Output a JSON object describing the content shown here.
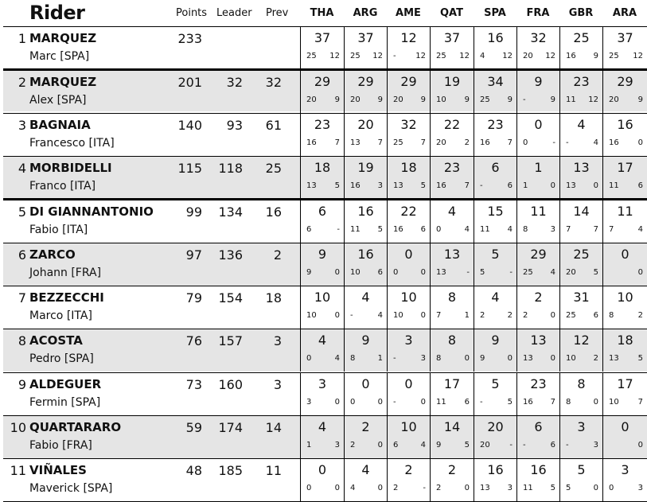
{
  "header": {
    "rider": "Rider",
    "points": "Points",
    "leader": "Leader",
    "prev": "Prev",
    "races": [
      "THA",
      "ARG",
      "AME",
      "QAT",
      "SPA",
      "FRA",
      "GBR",
      "ARA"
    ]
  },
  "riders": [
    {
      "rank": "1",
      "surname": "MARQUEZ",
      "first": "Marc [SPA]",
      "points": "233",
      "leader": "",
      "prev": "",
      "races": [
        [
          "37",
          "25",
          "12"
        ],
        [
          "37",
          "25",
          "12"
        ],
        [
          "12",
          "-",
          "12"
        ],
        [
          "37",
          "25",
          "12"
        ],
        [
          "16",
          "4",
          "12"
        ],
        [
          "32",
          "20",
          "12"
        ],
        [
          "25",
          "16",
          "9"
        ],
        [
          "37",
          "25",
          "12"
        ]
      ]
    },
    {
      "rank": "2",
      "surname": "MARQUEZ",
      "first": "Alex [SPA]",
      "points": "201",
      "leader": "32",
      "prev": "32",
      "races": [
        [
          "29",
          "20",
          "9"
        ],
        [
          "29",
          "20",
          "9"
        ],
        [
          "29",
          "20",
          "9"
        ],
        [
          "19",
          "10",
          "9"
        ],
        [
          "34",
          "25",
          "9"
        ],
        [
          "9",
          "-",
          "9"
        ],
        [
          "23",
          "11",
          "12"
        ],
        [
          "29",
          "20",
          "9"
        ]
      ]
    },
    {
      "rank": "3",
      "surname": "BAGNAIA",
      "first": "Francesco [ITA]",
      "points": "140",
      "leader": "93",
      "prev": "61",
      "races": [
        [
          "23",
          "16",
          "7"
        ],
        [
          "20",
          "13",
          "7"
        ],
        [
          "32",
          "25",
          "7"
        ],
        [
          "22",
          "20",
          "2"
        ],
        [
          "23",
          "16",
          "7"
        ],
        [
          "0",
          "0",
          "-"
        ],
        [
          "4",
          "-",
          "4"
        ],
        [
          "16",
          "16",
          "0"
        ]
      ]
    },
    {
      "rank": "4",
      "surname": "MORBIDELLI",
      "first": "Franco [ITA]",
      "points": "115",
      "leader": "118",
      "prev": "25",
      "races": [
        [
          "18",
          "13",
          "5"
        ],
        [
          "19",
          "16",
          "3"
        ],
        [
          "18",
          "13",
          "5"
        ],
        [
          "23",
          "16",
          "7"
        ],
        [
          "6",
          "-",
          "6"
        ],
        [
          "1",
          "1",
          "0"
        ],
        [
          "13",
          "13",
          "0"
        ],
        [
          "17",
          "11",
          "6"
        ]
      ]
    },
    {
      "rank": "5",
      "surname": "DI GIANNANTONIO",
      "first": "Fabio [ITA]",
      "points": "99",
      "leader": "134",
      "prev": "16",
      "races": [
        [
          "6",
          "6",
          "-"
        ],
        [
          "16",
          "11",
          "5"
        ],
        [
          "22",
          "16",
          "6"
        ],
        [
          "4",
          "0",
          "4"
        ],
        [
          "15",
          "11",
          "4"
        ],
        [
          "11",
          "8",
          "3"
        ],
        [
          "14",
          "7",
          "7"
        ],
        [
          "11",
          "7",
          "4"
        ]
      ]
    },
    {
      "rank": "6",
      "surname": "ZARCO",
      "first": "Johann [FRA]",
      "points": "97",
      "leader": "136",
      "prev": "2",
      "races": [
        [
          "9",
          "9",
          "0"
        ],
        [
          "16",
          "10",
          "6"
        ],
        [
          "0",
          "0",
          "0"
        ],
        [
          "13",
          "13",
          "-"
        ],
        [
          "5",
          "5",
          "-"
        ],
        [
          "29",
          "25",
          "4"
        ],
        [
          "25",
          "20",
          "5"
        ],
        [
          "0",
          "",
          "0"
        ]
      ]
    },
    {
      "rank": "7",
      "surname": "BEZZECCHI",
      "first": "Marco [ITA]",
      "points": "79",
      "leader": "154",
      "prev": "18",
      "races": [
        [
          "10",
          "10",
          "0"
        ],
        [
          "4",
          "-",
          "4"
        ],
        [
          "10",
          "10",
          "0"
        ],
        [
          "8",
          "7",
          "1"
        ],
        [
          "4",
          "2",
          "2"
        ],
        [
          "2",
          "2",
          "0"
        ],
        [
          "31",
          "25",
          "6"
        ],
        [
          "10",
          "8",
          "2"
        ]
      ]
    },
    {
      "rank": "8",
      "surname": "ACOSTA",
      "first": "Pedro [SPA]",
      "points": "76",
      "leader": "157",
      "prev": "3",
      "races": [
        [
          "4",
          "0",
          "4"
        ],
        [
          "9",
          "8",
          "1"
        ],
        [
          "3",
          "-",
          "3"
        ],
        [
          "8",
          "8",
          "0"
        ],
        [
          "9",
          "9",
          "0"
        ],
        [
          "13",
          "13",
          "0"
        ],
        [
          "12",
          "10",
          "2"
        ],
        [
          "18",
          "13",
          "5"
        ]
      ]
    },
    {
      "rank": "9",
      "surname": "ALDEGUER",
      "first": "Fermin [SPA]",
      "points": "73",
      "leader": "160",
      "prev": "3",
      "races": [
        [
          "3",
          "3",
          "0"
        ],
        [
          "0",
          "0",
          "0"
        ],
        [
          "0",
          "-",
          "0"
        ],
        [
          "17",
          "11",
          "6"
        ],
        [
          "5",
          "-",
          "5"
        ],
        [
          "23",
          "16",
          "7"
        ],
        [
          "8",
          "8",
          "0"
        ],
        [
          "17",
          "10",
          "7"
        ]
      ]
    },
    {
      "rank": "10",
      "surname": "QUARTARARO",
      "first": "Fabio [FRA]",
      "points": "59",
      "leader": "174",
      "prev": "14",
      "races": [
        [
          "4",
          "1",
          "3"
        ],
        [
          "2",
          "2",
          "0"
        ],
        [
          "10",
          "6",
          "4"
        ],
        [
          "14",
          "9",
          "5"
        ],
        [
          "20",
          "20",
          "-"
        ],
        [
          "6",
          "-",
          "6"
        ],
        [
          "3",
          "-",
          "3"
        ],
        [
          "0",
          "",
          "0"
        ]
      ]
    },
    {
      "rank": "11",
      "surname": "VIÑALES",
      "first": "Maverick [SPA]",
      "points": "48",
      "leader": "185",
      "prev": "11",
      "races": [
        [
          "0",
          "0",
          "0"
        ],
        [
          "4",
          "4",
          "0"
        ],
        [
          "2",
          "2",
          "-"
        ],
        [
          "2",
          "2",
          "0"
        ],
        [
          "16",
          "13",
          "3"
        ],
        [
          "16",
          "11",
          "5"
        ],
        [
          "5",
          "5",
          "0"
        ],
        [
          "3",
          "0",
          "3"
        ]
      ]
    }
  ]
}
